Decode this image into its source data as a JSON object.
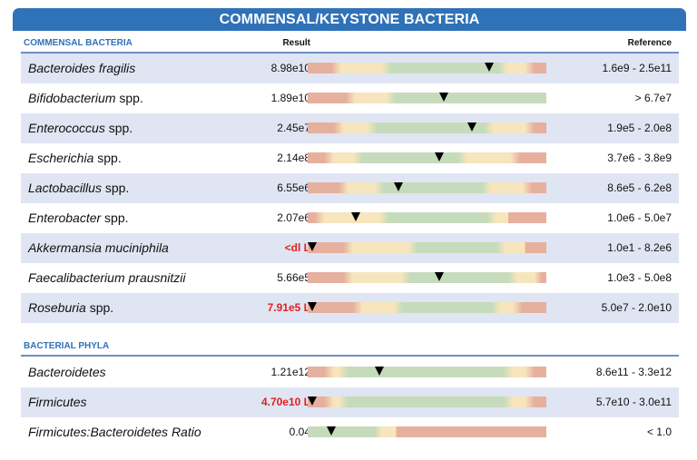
{
  "header": {
    "title": "COMMENSAL/KEYSTONE BACTERIA"
  },
  "colors": {
    "header_blue": "#2f72b8",
    "row_shade": "#dfe5f3",
    "low_red": "#e0231e",
    "bar_red": "#e6b09e",
    "bar_yellow": "#f7e6bd",
    "bar_green": "#c6dbbb"
  },
  "sections": [
    {
      "title": "COMMENSAL BACTERIA",
      "result_header": "Result",
      "reference_header": "Reference",
      "rows": [
        {
          "genus": "Bacteroides fragilis",
          "suffix": "",
          "result": "8.98e10",
          "flag": "",
          "reference": "1.6e9 - 2.5e11",
          "marker_pct": 76,
          "bar": "R:0-10,Y:14-31,G:35-80,Y:84-91,R:95-100"
        },
        {
          "genus": "Bifidobacterium",
          "suffix": " spp.",
          "result": "1.89e10",
          "flag": "",
          "reference": "> 6.7e7",
          "marker_pct": 57,
          "bar": "R:0-16,Y:20-33,G:37-100"
        },
        {
          "genus": "Enterococcus",
          "suffix": " spp.",
          "result": "2.45e7",
          "flag": "",
          "reference": "1.9e5 - 2.0e8",
          "marker_pct": 69,
          "bar": "R:0-11,Y:15-25,G:29-74,Y:78-91,R:95-100"
        },
        {
          "genus": "Escherichia",
          "suffix": " spp.",
          "result": "2.14e8",
          "flag": "",
          "reference": "3.7e6 - 3.8e9",
          "marker_pct": 55,
          "bar": "R:0-7,Y:11-19,G:23-63,Y:67-85,R:89-100"
        },
        {
          "genus": "Lactobacillus",
          "suffix": " spp.",
          "result": "6.55e6",
          "flag": "",
          "reference": "8.6e5 - 6.2e8",
          "marker_pct": 38,
          "bar": "R:0-13,Y:17-28,G:32-73,Y:77-90,R:94-100"
        },
        {
          "genus": "Enterobacter",
          "suffix": " spp.",
          "result": "2.07e6",
          "flag": "",
          "reference": "1.0e6 - 5.0e7",
          "marker_pct": 20,
          "bar": "R:0-3,Y:7-30,G:34-75,Y:79-84,R:84-100"
        },
        {
          "genus": "Akkermansia muciniphila",
          "suffix": "",
          "result": "<dl L",
          "flag": "low",
          "reference": "1.0e1 - 8.2e6",
          "marker_pct": 2,
          "bar": "R:0-15,Y:19-42,G:46-79,Y:83-91,R:91-100"
        },
        {
          "genus": "Faecalibacterium prausnitzii",
          "suffix": "",
          "result": "5.66e5",
          "flag": "",
          "reference": "1.0e3 - 5.0e8",
          "marker_pct": 55,
          "bar": "R:0-15,Y:19-39,G:43-84,Y:88-95,R:98-100"
        },
        {
          "genus": "Roseburia",
          "suffix": " spp.",
          "result": "7.91e5 L",
          "flag": "low",
          "reference": "5.0e7 - 2.0e10",
          "marker_pct": 2,
          "bar": "R:0-19,Y:23-36,G:40-77,Y:81-86,R:90-100"
        }
      ]
    },
    {
      "title": "BACTERIAL PHYLA",
      "rows": [
        {
          "genus": "Bacteroidetes",
          "suffix": "",
          "result": "1.21e12",
          "flag": "",
          "reference": "8.6e11 - 3.3e12",
          "marker_pct": 30,
          "bar": "R:0-7,Y:11-13,G:17-82,Y:86-91,R:95-100"
        },
        {
          "genus": "Firmicutes",
          "suffix": "",
          "result": "4.70e10 L",
          "flag": "low",
          "reference": "5.7e10 - 3.0e11",
          "marker_pct": 2,
          "bar": "R:0-7,Y:11-13,G:17-82,Y:86-91,R:95-100"
        },
        {
          "genus": "Firmicutes:Bacteroidetes Ratio",
          "suffix": "",
          "result": "0.04",
          "flag": "",
          "reference": "< 1.0",
          "marker_pct": 10,
          "bar": "G:0-28,Y:31-37,R:37-100"
        }
      ]
    }
  ]
}
